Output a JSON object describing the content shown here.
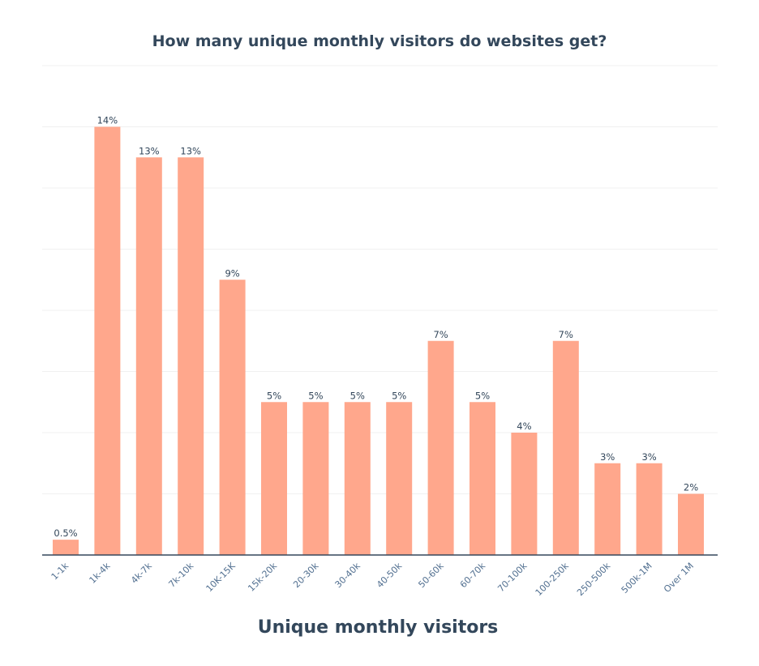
{
  "chart_data": {
    "type": "bar",
    "title": "How many unique monthly visitors do websites get?",
    "xlabel": "Unique monthly visitors",
    "ylabel": "",
    "categories": [
      "1-1k",
      "1k-4k",
      "4k-7k",
      "7k-10k",
      "10K-15K",
      "15k-20k",
      "20-30k",
      "30-40k",
      "40-50k",
      "50-60k",
      "60-70k",
      "70-100k",
      "100-250k",
      "250-500k",
      "500k-1M",
      "Over 1M"
    ],
    "values": [
      0.5,
      14,
      13,
      13,
      9,
      5,
      5,
      5,
      5,
      7,
      5,
      4,
      7,
      3,
      3,
      2
    ],
    "data_labels": [
      "0.5%",
      "14%",
      "13%",
      "13%",
      "9%",
      "5%",
      "5%",
      "5%",
      "5%",
      "7%",
      "5%",
      "4%",
      "7%",
      "3%",
      "3%",
      "2%"
    ],
    "ylim": [
      0,
      16
    ],
    "grid": true,
    "legend": "none",
    "bar_color": "#ffa78c"
  }
}
